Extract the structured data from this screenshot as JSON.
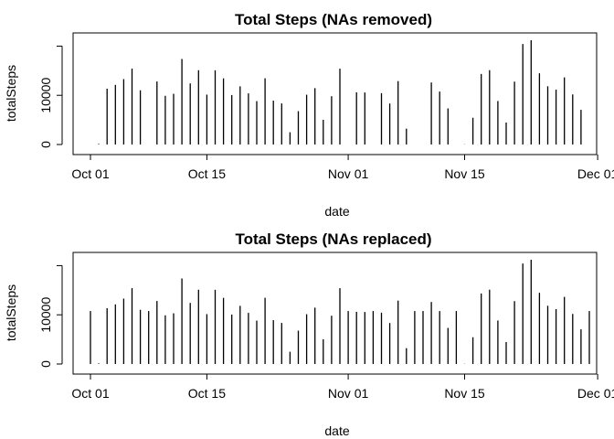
{
  "chart_data": [
    {
      "type": "histogram-bars",
      "title": "Total Steps (NAs removed)",
      "xlabel": "date",
      "ylabel": "totalSteps",
      "x_ticks": [
        "Oct 01",
        "Oct 15",
        "Nov 01",
        "Nov 15",
        "Dec 01"
      ],
      "y_ticks": [
        "0",
        "10000"
      ],
      "ylim": [
        0,
        21194
      ],
      "x": [
        "Oct 01",
        "Oct 02",
        "Oct 03",
        "Oct 04",
        "Oct 05",
        "Oct 06",
        "Oct 07",
        "Oct 08",
        "Oct 09",
        "Oct 10",
        "Oct 11",
        "Oct 12",
        "Oct 13",
        "Oct 14",
        "Oct 15",
        "Oct 16",
        "Oct 17",
        "Oct 18",
        "Oct 19",
        "Oct 20",
        "Oct 21",
        "Oct 22",
        "Oct 23",
        "Oct 24",
        "Oct 25",
        "Oct 26",
        "Oct 27",
        "Oct 28",
        "Oct 29",
        "Oct 30",
        "Oct 31",
        "Nov 01",
        "Nov 02",
        "Nov 03",
        "Nov 04",
        "Nov 05",
        "Nov 06",
        "Nov 07",
        "Nov 08",
        "Nov 09",
        "Nov 10",
        "Nov 11",
        "Nov 12",
        "Nov 13",
        "Nov 14",
        "Nov 15",
        "Nov 16",
        "Nov 17",
        "Nov 18",
        "Nov 19",
        "Nov 20",
        "Nov 21",
        "Nov 22",
        "Nov 23",
        "Nov 24",
        "Nov 25",
        "Nov 26",
        "Nov 27",
        "Nov 28",
        "Nov 29",
        "Nov 30"
      ],
      "values": [
        0,
        126,
        11352,
        12116,
        13294,
        15420,
        11015,
        0,
        12811,
        9900,
        10304,
        17382,
        12426,
        15098,
        10139,
        15084,
        13452,
        10056,
        11829,
        10395,
        8821,
        13460,
        8918,
        8355,
        2492,
        6778,
        10119,
        11458,
        5018,
        9819,
        15414,
        0,
        10600,
        10571,
        0,
        10439,
        8334,
        12883,
        3219,
        0,
        0,
        12608,
        10765,
        7336,
        0,
        41,
        5441,
        14339,
        15110,
        8841,
        4472,
        12787,
        20427,
        21194,
        14478,
        11834,
        11162,
        13646,
        10183,
        7047,
        0
      ]
    },
    {
      "type": "histogram-bars",
      "title": "Total Steps (NAs replaced)",
      "xlabel": "date",
      "ylabel": "totalSteps",
      "x_ticks": [
        "Oct 01",
        "Oct 15",
        "Nov 01",
        "Nov 15",
        "Dec 01"
      ],
      "y_ticks": [
        "0",
        "10000"
      ],
      "ylim": [
        0,
        21194
      ],
      "x": [
        "Oct 01",
        "Oct 02",
        "Oct 03",
        "Oct 04",
        "Oct 05",
        "Oct 06",
        "Oct 07",
        "Oct 08",
        "Oct 09",
        "Oct 10",
        "Oct 11",
        "Oct 12",
        "Oct 13",
        "Oct 14",
        "Oct 15",
        "Oct 16",
        "Oct 17",
        "Oct 18",
        "Oct 19",
        "Oct 20",
        "Oct 21",
        "Oct 22",
        "Oct 23",
        "Oct 24",
        "Oct 25",
        "Oct 26",
        "Oct 27",
        "Oct 28",
        "Oct 29",
        "Oct 30",
        "Oct 31",
        "Nov 01",
        "Nov 02",
        "Nov 03",
        "Nov 04",
        "Nov 05",
        "Nov 06",
        "Nov 07",
        "Nov 08",
        "Nov 09",
        "Nov 10",
        "Nov 11",
        "Nov 12",
        "Nov 13",
        "Nov 14",
        "Nov 15",
        "Nov 16",
        "Nov 17",
        "Nov 18",
        "Nov 19",
        "Nov 20",
        "Nov 21",
        "Nov 22",
        "Nov 23",
        "Nov 24",
        "Nov 25",
        "Nov 26",
        "Nov 27",
        "Nov 28",
        "Nov 29",
        "Nov 30"
      ],
      "values": [
        10766,
        126,
        11352,
        12116,
        13294,
        15420,
        11015,
        10766,
        12811,
        9900,
        10304,
        17382,
        12426,
        15098,
        10139,
        15084,
        13452,
        10056,
        11829,
        10395,
        8821,
        13460,
        8918,
        8355,
        2492,
        6778,
        10119,
        11458,
        5018,
        9819,
        15414,
        10766,
        10600,
        10571,
        10766,
        10439,
        8334,
        12883,
        3219,
        10766,
        10766,
        12608,
        10765,
        7336,
        10766,
        41,
        5441,
        14339,
        15110,
        8841,
        4472,
        12787,
        20427,
        21194,
        14478,
        11834,
        11162,
        13646,
        10183,
        7047,
        10766
      ]
    }
  ]
}
